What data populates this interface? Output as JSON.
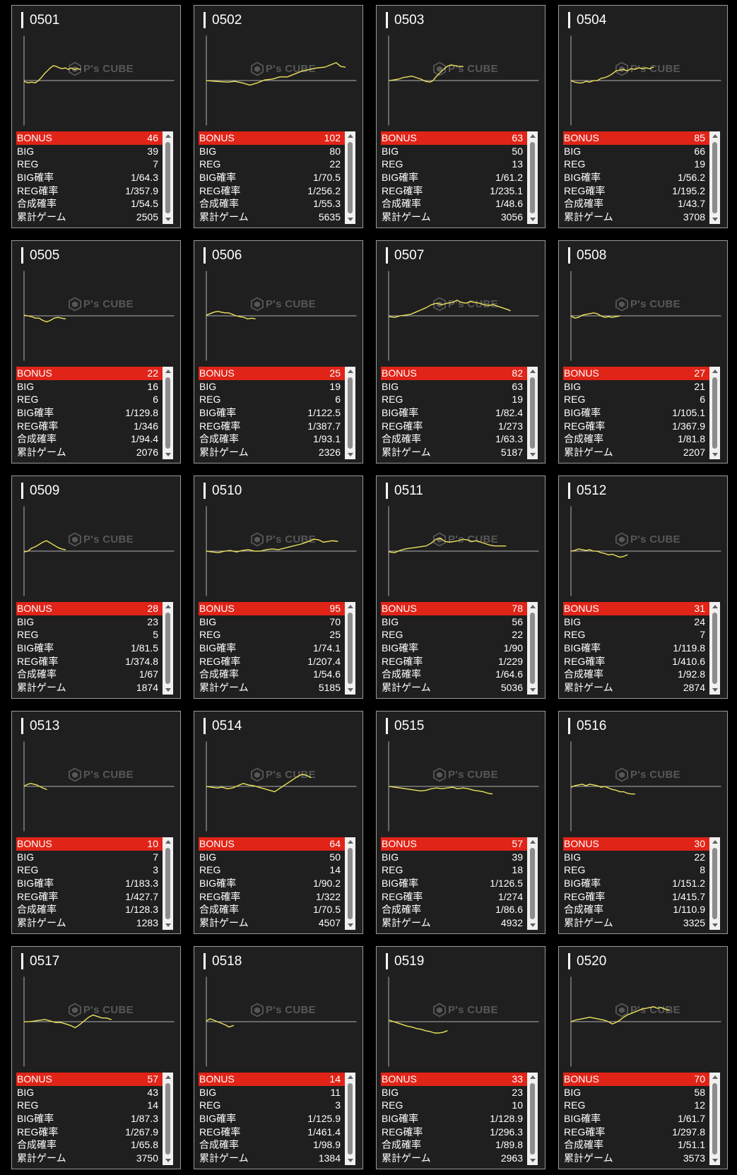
{
  "row_labels": {
    "bonus": "BONUS",
    "big": "BIG",
    "reg": "REG",
    "big_prob": "BIG確率",
    "reg_prob": "REG確率",
    "total_prob": "合成確率",
    "total_games": "累計ゲーム"
  },
  "watermark": {
    "text": "P's CUBE"
  },
  "icons": {
    "watermark": "cube-logo-icon",
    "scroll_up": "triangle-up-icon",
    "scroll_down": "triangle-down-icon"
  },
  "colors": {
    "page_background": "#000000",
    "card_background": "#1f1f1f",
    "card_border": "#9a9a9a",
    "text": "#ffffff",
    "bonus_row": "#e02418",
    "graph_line": "#ece25c",
    "axis": "#b0b0b0",
    "watermark": "#575757",
    "scrollbar_track": "#f0f0f0",
    "scrollbar_thumb": "#8c8c8c",
    "scrollbar_arrow": "#5f5f5f"
  },
  "machines": [
    {
      "number": "0501",
      "bonus": 46,
      "big": 39,
      "reg": 7,
      "big_prob": "1/64.3",
      "reg_prob": "1/357.9",
      "total_prob": "1/54.5",
      "total_games": 2505
    },
    {
      "number": "0502",
      "bonus": 102,
      "big": 80,
      "reg": 22,
      "big_prob": "1/70.5",
      "reg_prob": "1/256.2",
      "total_prob": "1/55.3",
      "total_games": 5635
    },
    {
      "number": "0503",
      "bonus": 63,
      "big": 50,
      "reg": 13,
      "big_prob": "1/61.2",
      "reg_prob": "1/235.1",
      "total_prob": "1/48.6",
      "total_games": 3056
    },
    {
      "number": "0504",
      "bonus": 85,
      "big": 66,
      "reg": 19,
      "big_prob": "1/56.2",
      "reg_prob": "1/195.2",
      "total_prob": "1/43.7",
      "total_games": 3708
    },
    {
      "number": "0505",
      "bonus": 22,
      "big": 16,
      "reg": 6,
      "big_prob": "1/129.8",
      "reg_prob": "1/346",
      "total_prob": "1/94.4",
      "total_games": 2076
    },
    {
      "number": "0506",
      "bonus": 25,
      "big": 19,
      "reg": 6,
      "big_prob": "1/122.5",
      "reg_prob": "1/387.7",
      "total_prob": "1/93.1",
      "total_games": 2326
    },
    {
      "number": "0507",
      "bonus": 82,
      "big": 63,
      "reg": 19,
      "big_prob": "1/82.4",
      "reg_prob": "1/273",
      "total_prob": "1/63.3",
      "total_games": 5187
    },
    {
      "number": "0508",
      "bonus": 27,
      "big": 21,
      "reg": 6,
      "big_prob": "1/105.1",
      "reg_prob": "1/367.9",
      "total_prob": "1/81.8",
      "total_games": 2207
    },
    {
      "number": "0509",
      "bonus": 28,
      "big": 23,
      "reg": 5,
      "big_prob": "1/81.5",
      "reg_prob": "1/374.8",
      "total_prob": "1/67",
      "total_games": 1874
    },
    {
      "number": "0510",
      "bonus": 95,
      "big": 70,
      "reg": 25,
      "big_prob": "1/74.1",
      "reg_prob": "1/207.4",
      "total_prob": "1/54.6",
      "total_games": 5185
    },
    {
      "number": "0511",
      "bonus": 78,
      "big": 56,
      "reg": 22,
      "big_prob": "1/90",
      "reg_prob": "1/229",
      "total_prob": "1/64.6",
      "total_games": 5036
    },
    {
      "number": "0512",
      "bonus": 31,
      "big": 24,
      "reg": 7,
      "big_prob": "1/119.8",
      "reg_prob": "1/410.6",
      "total_prob": "1/92.8",
      "total_games": 2874
    },
    {
      "number": "0513",
      "bonus": 10,
      "big": 7,
      "reg": 3,
      "big_prob": "1/183.3",
      "reg_prob": "1/427.7",
      "total_prob": "1/128.3",
      "total_games": 1283
    },
    {
      "number": "0514",
      "bonus": 64,
      "big": 50,
      "reg": 14,
      "big_prob": "1/90.2",
      "reg_prob": "1/322",
      "total_prob": "1/70.5",
      "total_games": 4507
    },
    {
      "number": "0515",
      "bonus": 57,
      "big": 39,
      "reg": 18,
      "big_prob": "1/126.5",
      "reg_prob": "1/274",
      "total_prob": "1/86.6",
      "total_games": 4932
    },
    {
      "number": "0516",
      "bonus": 30,
      "big": 22,
      "reg": 8,
      "big_prob": "1/151.2",
      "reg_prob": "1/415.7",
      "total_prob": "1/110.9",
      "total_games": 3325
    },
    {
      "number": "0517",
      "bonus": 57,
      "big": 43,
      "reg": 14,
      "big_prob": "1/87.3",
      "reg_prob": "1/267.9",
      "total_prob": "1/65.8",
      "total_games": 3750
    },
    {
      "number": "0518",
      "bonus": 14,
      "big": 11,
      "reg": 3,
      "big_prob": "1/125.9",
      "reg_prob": "1/461.4",
      "total_prob": "1/98.9",
      "total_games": 1384
    },
    {
      "number": "0519",
      "bonus": 33,
      "big": 23,
      "reg": 10,
      "big_prob": "1/128.9",
      "reg_prob": "1/296.3",
      "total_prob": "1/89.8",
      "total_games": 2963
    },
    {
      "number": "0520",
      "bonus": 70,
      "big": 58,
      "reg": 12,
      "big_prob": "1/61.7",
      "reg_prob": "1/297.8",
      "total_prob": "1/51.1",
      "total_games": 3573
    }
  ]
}
